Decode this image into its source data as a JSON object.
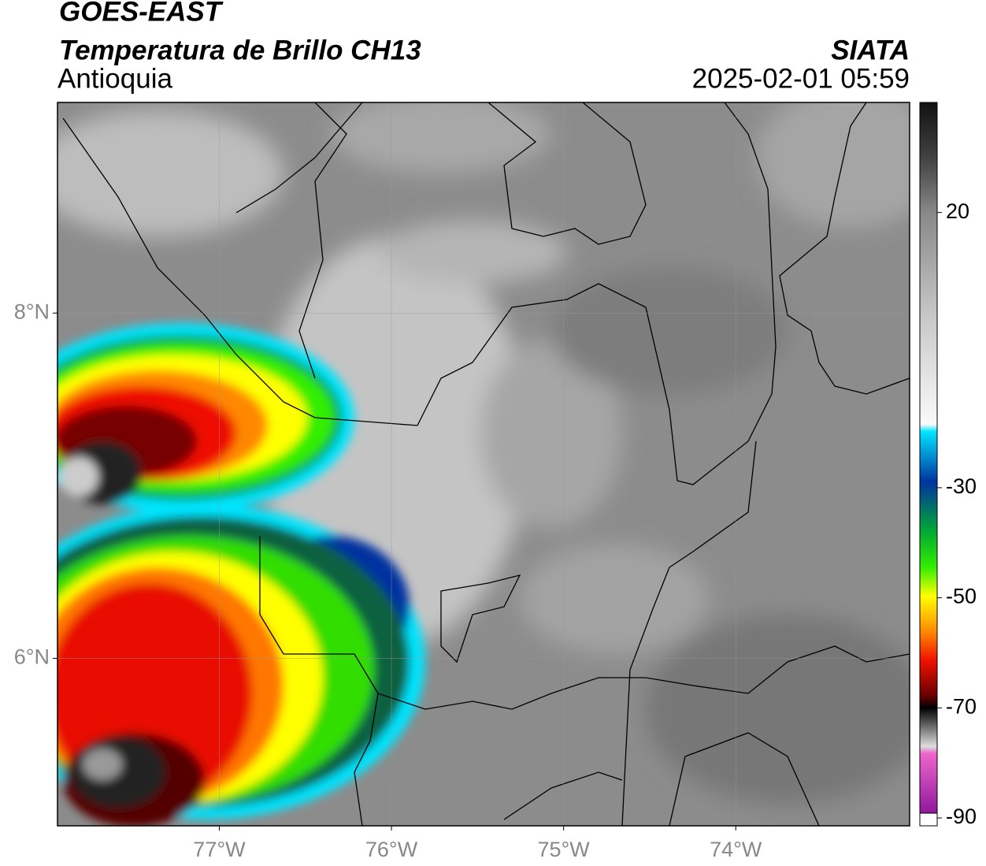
{
  "header": {
    "title": "GOES-EAST",
    "subtitle": "Temperatura de Brillo CH13",
    "region": "Antioquia",
    "source": "SIATA",
    "datetime": "2025-02-01 05:59"
  },
  "map": {
    "xlim": [
      -77.94,
      -72.99
    ],
    "ylim": [
      5.03,
      9.22
    ],
    "xticks": [
      {
        "value": -77,
        "label": "77°W"
      },
      {
        "value": -76,
        "label": "76°W"
      },
      {
        "value": -75,
        "label": "75°W"
      },
      {
        "value": -74,
        "label": "74°W"
      }
    ],
    "yticks": [
      {
        "value": 6,
        "label": "6°N"
      },
      {
        "value": 8,
        "label": "8°N"
      }
    ],
    "grid": true
  },
  "colorbar": {
    "lim": [
      -90,
      40
    ],
    "ticks": [
      20,
      -30,
      -50,
      -70,
      -90
    ]
  }
}
